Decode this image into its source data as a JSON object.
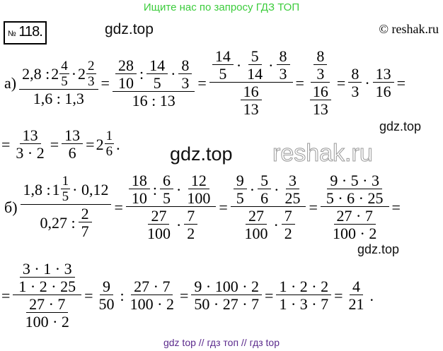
{
  "watermarks": {
    "top": "Ищите нас по запросу ГДЗ ТОП",
    "gdz1": "gdz.top",
    "gdz2": "gdz.top",
    "gdz3": "gdz.top",
    "gdz4": "gdz.top",
    "copyright": "© reshak.ru",
    "reshak": "reshak.ru",
    "bottom": "gdz top  //  гдз топ  //  гдз top"
  },
  "problem": {
    "sign": "№",
    "number": "118."
  },
  "rows": [
    [
      "а)",
      {
        "f": [
          [
            "2,8 : ",
            {
              "m": [
                "2",
                "4",
                "5"
              ]
            },
            " · ",
            {
              "m": [
                "2",
                "2",
                "3"
              ]
            }
          ],
          [
            "1,6 : 1,3"
          ]
        ]
      },
      "=",
      {
        "f": [
          [
            {
              "f": [
                [
                  "28"
                ],
                [
                  "10"
                ]
              ]
            },
            " : ",
            {
              "f": [
                [
                  "14"
                ],
                [
                  "5"
                ]
              ]
            },
            " · ",
            {
              "f": [
                [
                  "8"
                ],
                [
                  "3"
                ]
              ]
            }
          ],
          [
            "16 : 13"
          ]
        ]
      },
      "=",
      {
        "f": [
          [
            {
              "f": [
                [
                  "14"
                ],
                [
                  "5"
                ]
              ]
            },
            "·",
            {
              "f": [
                [
                  "5"
                ],
                [
                  "14"
                ]
              ]
            },
            "·",
            {
              "f": [
                [
                  "8"
                ],
                [
                  "3"
                ]
              ]
            }
          ],
          [
            {
              "f": [
                [
                  "16"
                ],
                [
                  "13"
                ]
              ]
            }
          ]
        ]
      },
      "=",
      {
        "f": [
          [
            {
              "f": [
                [
                  "8"
                ],
                [
                  "3"
                ]
              ]
            }
          ],
          [
            {
              "f": [
                [
                  "16"
                ],
                [
                  "13"
                ]
              ]
            }
          ]
        ]
      },
      "=",
      {
        "f": [
          [
            "8"
          ],
          [
            "3"
          ]
        ]
      },
      "·",
      {
        "f": [
          [
            "13"
          ],
          [
            "16"
          ]
        ]
      },
      "="
    ],
    [
      "=",
      {
        "f": [
          [
            "13"
          ],
          [
            "3 · 2"
          ]
        ]
      },
      "=",
      {
        "f": [
          [
            "13"
          ],
          [
            "6"
          ]
        ]
      },
      "=",
      {
        "m": [
          "2",
          "1",
          "6"
        ]
      },
      "."
    ],
    [
      "б)",
      {
        "f": [
          [
            "1,8 : ",
            {
              "m": [
                "1",
                "1",
                "5"
              ]
            },
            " · 0,12"
          ],
          [
            "0,27 : ",
            {
              "f": [
                [
                  "2"
                ],
                [
                  "7"
                ]
              ]
            }
          ]
        ]
      },
      "=",
      {
        "f": [
          [
            {
              "f": [
                [
                  "18"
                ],
                [
                  "10"
                ]
              ]
            },
            " : ",
            {
              "f": [
                [
                  "6"
                ],
                [
                  "5"
                ]
              ]
            },
            " · ",
            {
              "f": [
                [
                  "12"
                ],
                [
                  "100"
                ]
              ]
            }
          ],
          [
            {
              "f": [
                [
                  "27"
                ],
                [
                  "100"
                ]
              ]
            },
            " · ",
            {
              "f": [
                [
                  "7"
                ],
                [
                  "2"
                ]
              ]
            }
          ]
        ]
      },
      "=",
      {
        "f": [
          [
            {
              "f": [
                [
                  "9"
                ],
                [
                  "5"
                ]
              ]
            },
            "·",
            {
              "f": [
                [
                  "5"
                ],
                [
                  "6"
                ]
              ]
            },
            "·",
            {
              "f": [
                [
                  "3"
                ],
                [
                  "25"
                ]
              ]
            }
          ],
          [
            {
              "f": [
                [
                  "27"
                ],
                [
                  "100"
                ]
              ]
            },
            "·",
            {
              "f": [
                [
                  "7"
                ],
                [
                  "2"
                ]
              ]
            }
          ]
        ]
      },
      "=",
      {
        "f": [
          [
            {
              "f": [
                [
                  "9 · 5 · 3"
                ],
                [
                  "5 · 6 · 25"
                ]
              ]
            }
          ],
          [
            {
              "f": [
                [
                  "27 · 7"
                ],
                [
                  "100 · 2"
                ]
              ]
            }
          ]
        ]
      },
      "="
    ],
    [
      "=",
      {
        "f": [
          [
            {
              "f": [
                [
                  "3 · 1 · 3"
                ],
                [
                  "1 · 2 · 25"
                ]
              ]
            }
          ],
          [
            {
              "f": [
                [
                  "27 · 7"
                ],
                [
                  "100 · 2"
                ]
              ]
            }
          ]
        ]
      },
      "=",
      {
        "f": [
          [
            "9"
          ],
          [
            "50"
          ]
        ]
      },
      ":",
      {
        "f": [
          [
            "27 · 7"
          ],
          [
            "100 · 2"
          ]
        ]
      },
      "=",
      {
        "f": [
          [
            "9 · 100 · 2"
          ],
          [
            "50 · 27 · 7"
          ]
        ]
      },
      "=",
      {
        "f": [
          [
            "1 · 2 · 2"
          ],
          [
            "1 · 3 · 7"
          ]
        ]
      },
      "=",
      {
        "f": [
          [
            "4"
          ],
          [
            "21"
          ]
        ]
      },
      "."
    ]
  ]
}
